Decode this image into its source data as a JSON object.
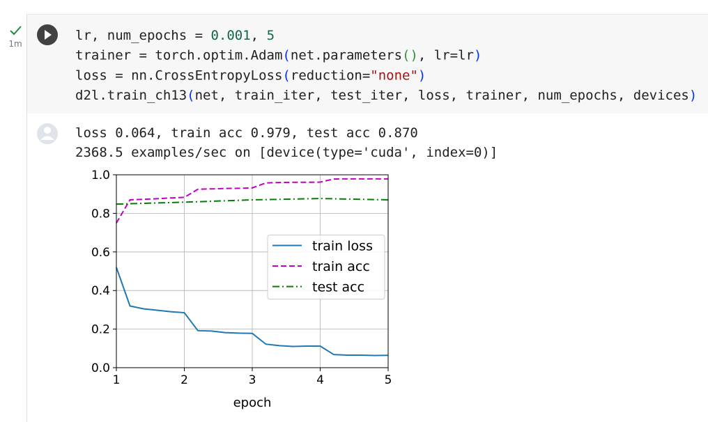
{
  "cell": {
    "status": "1m",
    "code": [
      [
        {
          "text": "lr, num_epochs = ",
          "color": "#212121"
        },
        {
          "text": "0.001",
          "color": "#116644"
        },
        {
          "text": ", ",
          "color": "#212121"
        },
        {
          "text": "5",
          "color": "#116644"
        }
      ],
      [
        {
          "text": "trainer = torch.optim.Adam",
          "color": "#212121"
        },
        {
          "text": "(",
          "color": "#0431fa"
        },
        {
          "text": "net.parameters",
          "color": "#212121"
        },
        {
          "text": "()",
          "color": "#319331"
        },
        {
          "text": ", lr=lr",
          "color": "#212121"
        },
        {
          "text": ")",
          "color": "#0431fa"
        }
      ],
      [
        {
          "text": "loss = nn.CrossEntropyLoss",
          "color": "#212121"
        },
        {
          "text": "(",
          "color": "#0431fa"
        },
        {
          "text": "reduction=",
          "color": "#212121"
        },
        {
          "text": "\"none\"",
          "color": "#a31515"
        },
        {
          "text": ")",
          "color": "#0431fa"
        }
      ],
      [
        {
          "text": "d2l.train_ch13",
          "color": "#212121"
        },
        {
          "text": "(",
          "color": "#0431fa"
        },
        {
          "text": "net, train_iter, test_iter, loss, trainer, num_epochs, devices",
          "color": "#212121"
        },
        {
          "text": ")",
          "color": "#0431fa"
        }
      ]
    ],
    "output": [
      "loss 0.064, train acc 0.979, test acc 0.870",
      "2368.5 examples/sec on [device(type='cuda', index=0)]"
    ]
  },
  "chart_data": {
    "type": "line",
    "x_label": "epoch",
    "x": [
      1.0,
      1.2,
      1.4,
      1.6,
      1.8,
      2.0,
      2.2,
      2.4,
      2.6,
      2.8,
      3.0,
      3.2,
      3.4,
      3.6,
      3.8,
      4.0,
      4.2,
      4.4,
      4.6,
      4.8,
      5.0
    ],
    "series": [
      {
        "name": "train loss",
        "color": "#1f77b4",
        "linestyle": "solid",
        "values": [
          0.52,
          0.32,
          0.305,
          0.298,
          0.29,
          0.285,
          0.192,
          0.19,
          0.182,
          0.179,
          0.178,
          0.122,
          0.114,
          0.11,
          0.112,
          0.112,
          0.068,
          0.065,
          0.065,
          0.063,
          0.064
        ]
      },
      {
        "name": "train acc",
        "color": "#bf00bf",
        "linestyle": "dashed",
        "values": [
          0.75,
          0.87,
          0.873,
          0.876,
          0.88,
          0.883,
          0.925,
          0.927,
          0.929,
          0.93,
          0.932,
          0.958,
          0.96,
          0.961,
          0.961,
          0.962,
          0.978,
          0.979,
          0.979,
          0.979,
          0.979
        ]
      },
      {
        "name": "test acc",
        "color": "#007f00",
        "linestyle": "dashdot",
        "x": [
          1,
          2,
          3,
          4,
          5
        ],
        "values": [
          0.848,
          0.858,
          0.87,
          0.877,
          0.87
        ]
      }
    ],
    "xlim": [
      1,
      5
    ],
    "xticks": [
      1,
      2,
      3,
      4,
      5
    ],
    "ylim": [
      0,
      1
    ],
    "yticks": [
      {
        "value": 0,
        "label": "0.0"
      },
      0.2,
      0.4,
      0.6,
      0.8,
      {
        "value": 1,
        "label": "1.0"
      }
    ],
    "grid": true,
    "legend": "center right"
  }
}
